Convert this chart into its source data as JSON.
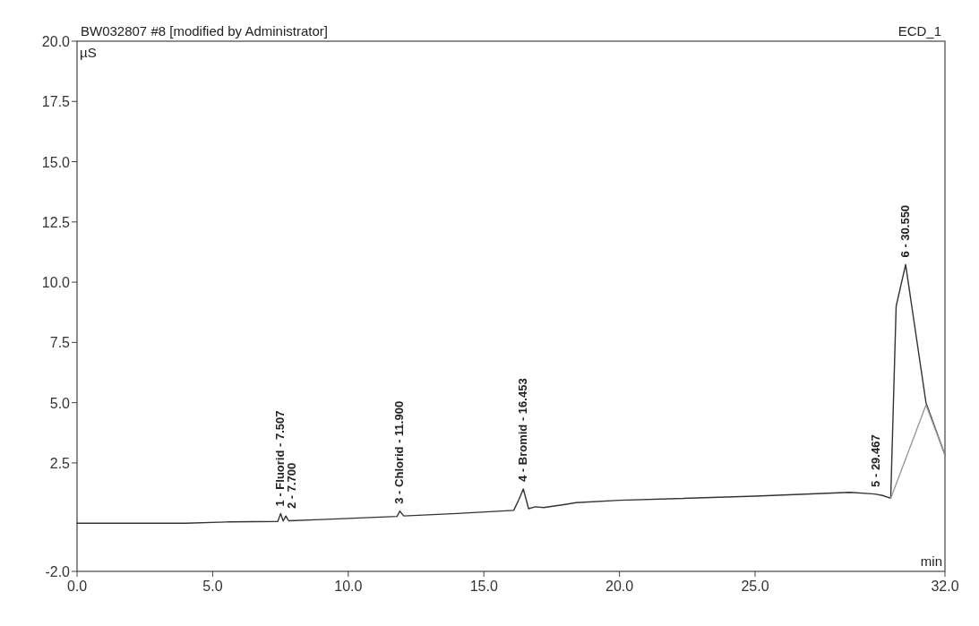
{
  "chart_data": {
    "type": "line",
    "title": "BW032807 #8 [modified by Administrator]",
    "subtitle": "ECD_1",
    "xlabel": "min",
    "ylabel": "µS",
    "xlim": [
      0,
      32
    ],
    "ylim": [
      -2,
      20
    ],
    "xticks": [
      {
        "value": 0,
        "label": "0.0"
      },
      {
        "value": 5,
        "label": "5.0"
      },
      {
        "value": 10,
        "label": "10.0"
      },
      {
        "value": 15,
        "label": "15.0"
      },
      {
        "value": 20,
        "label": "20.0"
      },
      {
        "value": 25,
        "label": "25.0"
      },
      {
        "value": 32,
        "label": "32.0"
      }
    ],
    "yticks": [
      {
        "value": -2,
        "label": "-2.0"
      },
      {
        "value": 2.5,
        "label": "2.5"
      },
      {
        "value": 5,
        "label": "5.0"
      },
      {
        "value": 7.5,
        "label": "7.5"
      },
      {
        "value": 10,
        "label": "10.0"
      },
      {
        "value": 12.5,
        "label": "12.5"
      },
      {
        "value": 15,
        "label": "15.0"
      },
      {
        "value": 17.5,
        "label": "17.5"
      },
      {
        "value": 20,
        "label": "20.0"
      }
    ],
    "marker": "none",
    "line_style": "solid",
    "series": [
      {
        "color": "#333333",
        "x": [
          0,
          4,
          5.5,
          7.4,
          7.507,
          7.6,
          7.7,
          7.8,
          9,
          11.8,
          11.9,
          12.05,
          14,
          16.1,
          16.3,
          16.453,
          16.65,
          16.9,
          17.2,
          18,
          18.4,
          20,
          25,
          28.5,
          29.3,
          29.467,
          29.7,
          30.0,
          30.2,
          30.55,
          31.3,
          32
        ],
        "values": [
          0,
          0,
          0.05,
          0.07,
          0.4,
          0.09,
          0.3,
          0.1,
          0.15,
          0.28,
          0.5,
          0.3,
          0.4,
          0.53,
          1.0,
          1.42,
          0.6,
          0.68,
          0.65,
          0.78,
          0.85,
          0.95,
          1.12,
          1.28,
          1.22,
          1.2,
          1.15,
          1.03,
          9.0,
          10.73,
          5.0,
          2.83
        ]
      },
      {
        "color": "#999999",
        "x": [
          30.0,
          31.3,
          32
        ],
        "values": [
          1.03,
          4.9,
          2.83
        ]
      }
    ],
    "annotations": [
      {
        "text": "1 - Fluorid - 7.507",
        "x": 7.507,
        "y": 0.4
      },
      {
        "text": "2 - 7.700",
        "x": 7.7,
        "y": 0.3
      },
      {
        "text": "3 - Chlorid - 11.900",
        "x": 11.9,
        "y": 0.5
      },
      {
        "text": "4 - Bromid - 16.453",
        "x": 16.453,
        "y": 1.42
      },
      {
        "text": "5 - 29.467",
        "x": 29.467,
        "y": 1.2
      },
      {
        "text": "6 - 30.550",
        "x": 30.55,
        "y": 10.73
      }
    ]
  }
}
